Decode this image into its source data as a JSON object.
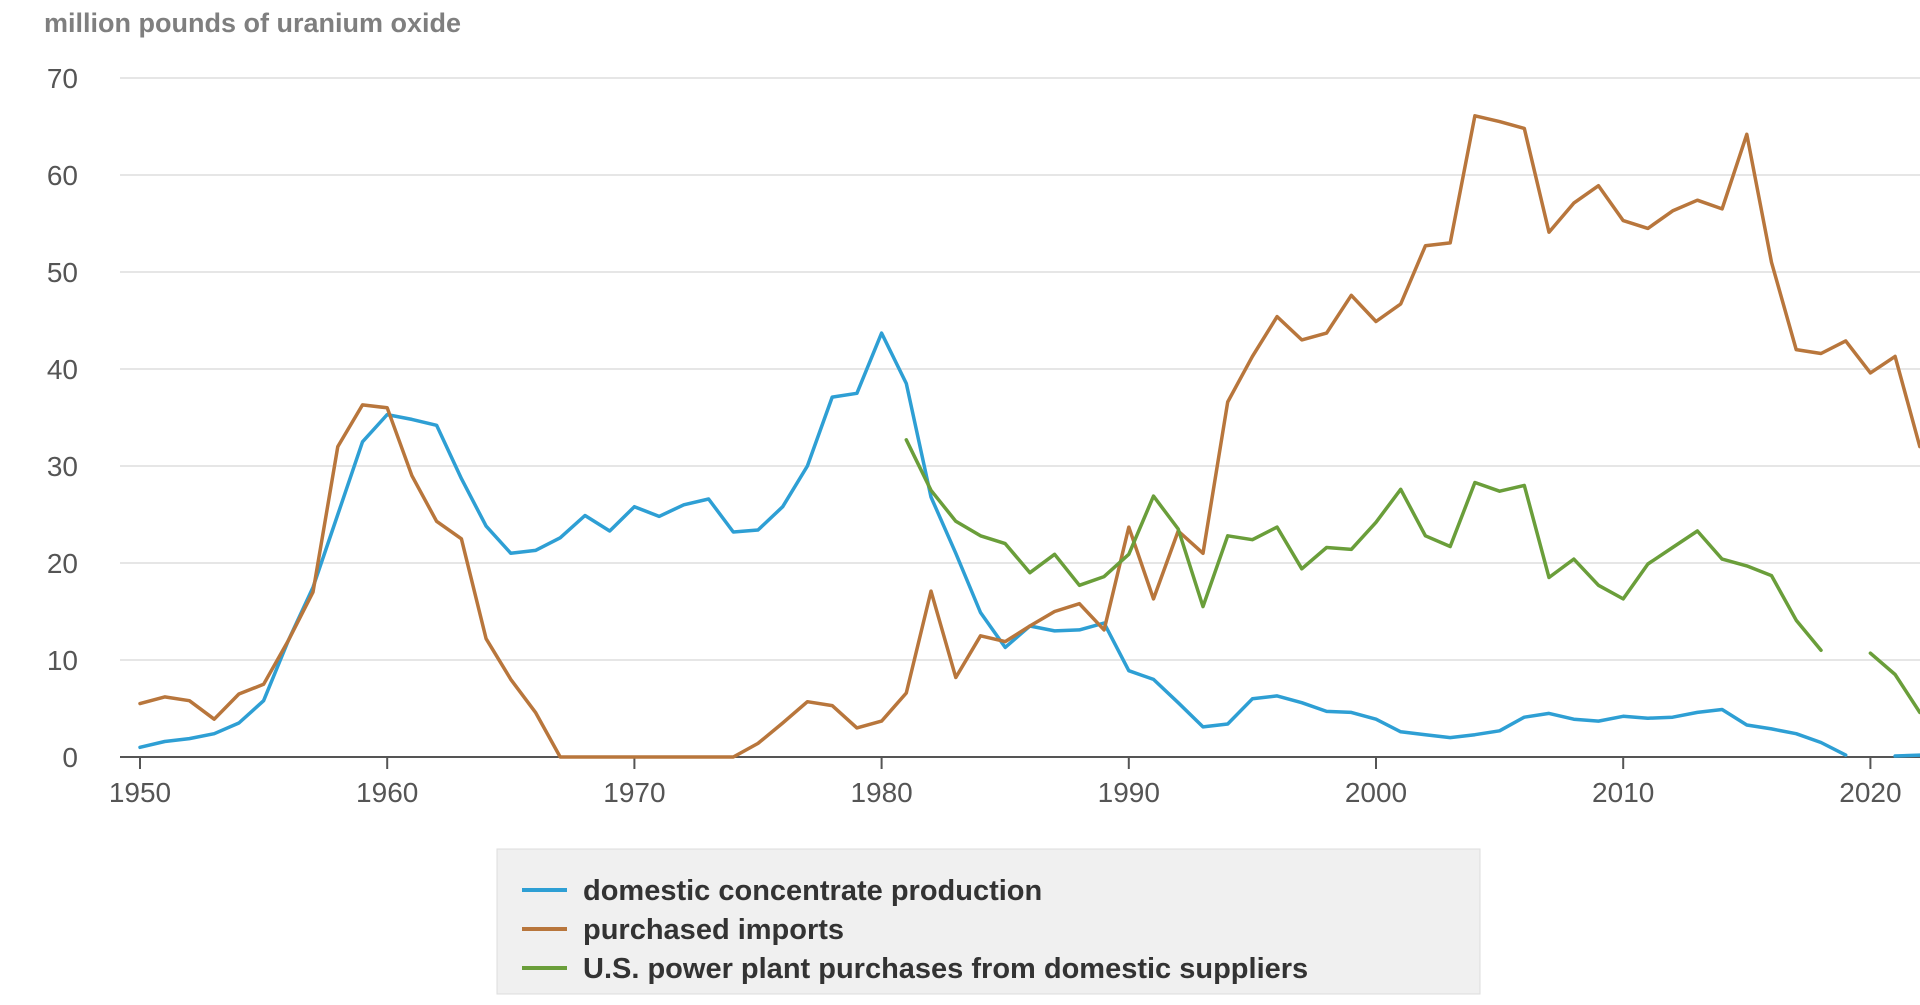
{
  "chart_data": {
    "type": "line",
    "title": "",
    "ylabel": "million pounds of uranium oxide",
    "xlabel": "",
    "xlim": [
      1950,
      2022
    ],
    "ylim": [
      0,
      70
    ],
    "x_ticks": [
      1950,
      1960,
      1970,
      1980,
      1990,
      2000,
      2010,
      2020
    ],
    "y_ticks": [
      0,
      10,
      20,
      30,
      40,
      50,
      60,
      70
    ],
    "grid": "horizontal",
    "legend_position": "bottom-center",
    "colors": {
      "domestic": "#2e9fd4",
      "imports": "#b8763c",
      "power_plant": "#6a9e3a"
    },
    "series": [
      {
        "name": "domestic concentrate production",
        "color": "#2e9fd4",
        "points": [
          [
            1950,
            1.0
          ],
          [
            1951,
            1.6
          ],
          [
            1952,
            1.9
          ],
          [
            1953,
            2.4
          ],
          [
            1954,
            3.5
          ],
          [
            1955,
            5.8
          ],
          [
            1956,
            12.0
          ],
          [
            1957,
            17.5
          ],
          [
            1958,
            25.0
          ],
          [
            1959,
            32.5
          ],
          [
            1960,
            35.3
          ],
          [
            1961,
            34.8
          ],
          [
            1962,
            34.2
          ],
          [
            1963,
            28.7
          ],
          [
            1964,
            23.8
          ],
          [
            1965,
            21.0
          ],
          [
            1966,
            21.3
          ],
          [
            1967,
            22.6
          ],
          [
            1968,
            24.9
          ],
          [
            1969,
            23.3
          ],
          [
            1970,
            25.8
          ],
          [
            1971,
            24.8
          ],
          [
            1972,
            26.0
          ],
          [
            1973,
            26.6
          ],
          [
            1974,
            23.2
          ],
          [
            1975,
            23.4
          ],
          [
            1976,
            25.8
          ],
          [
            1977,
            30.0
          ],
          [
            1978,
            37.1
          ],
          [
            1979,
            37.5
          ],
          [
            1980,
            43.7
          ],
          [
            1981,
            38.5
          ],
          [
            1982,
            26.8
          ],
          [
            1983,
            21.0
          ],
          [
            1984,
            14.9
          ],
          [
            1985,
            11.3
          ],
          [
            1986,
            13.5
          ],
          [
            1987,
            13.0
          ],
          [
            1988,
            13.1
          ],
          [
            1989,
            13.8
          ],
          [
            1990,
            8.9
          ],
          [
            1991,
            8.0
          ],
          [
            1992,
            5.6
          ],
          [
            1993,
            3.1
          ],
          [
            1994,
            3.4
          ],
          [
            1995,
            6.0
          ],
          [
            1996,
            6.3
          ],
          [
            1997,
            5.6
          ],
          [
            1998,
            4.7
          ],
          [
            1999,
            4.6
          ],
          [
            2000,
            3.9
          ],
          [
            2001,
            2.6
          ],
          [
            2002,
            2.3
          ],
          [
            2003,
            2.0
          ],
          [
            2004,
            2.3
          ],
          [
            2005,
            2.7
          ],
          [
            2006,
            4.1
          ],
          [
            2007,
            4.5
          ],
          [
            2008,
            3.9
          ],
          [
            2009,
            3.7
          ],
          [
            2010,
            4.2
          ],
          [
            2011,
            4.0
          ],
          [
            2012,
            4.1
          ],
          [
            2013,
            4.6
          ],
          [
            2014,
            4.9
          ],
          [
            2015,
            3.3
          ],
          [
            2016,
            2.9
          ],
          [
            2017,
            2.4
          ],
          [
            2018,
            1.5
          ],
          [
            2019,
            0.2
          ],
          [
            2020,
            null
          ],
          [
            2021,
            0.1
          ],
          [
            2022,
            0.2
          ]
        ]
      },
      {
        "name": "purchased imports",
        "color": "#b8763c",
        "points": [
          [
            1950,
            5.5
          ],
          [
            1951,
            6.2
          ],
          [
            1952,
            5.8
          ],
          [
            1953,
            3.9
          ],
          [
            1954,
            6.5
          ],
          [
            1955,
            7.5
          ],
          [
            1956,
            12.0
          ],
          [
            1957,
            17.0
          ],
          [
            1958,
            32.0
          ],
          [
            1959,
            36.3
          ],
          [
            1960,
            36.0
          ],
          [
            1961,
            29.0
          ],
          [
            1962,
            24.3
          ],
          [
            1963,
            22.5
          ],
          [
            1964,
            12.2
          ],
          [
            1965,
            8.0
          ],
          [
            1966,
            4.6
          ],
          [
            1967,
            0
          ],
          [
            1968,
            0
          ],
          [
            1969,
            0
          ],
          [
            1970,
            0
          ],
          [
            1971,
            0
          ],
          [
            1972,
            0
          ],
          [
            1973,
            0
          ],
          [
            1974,
            0
          ],
          [
            1975,
            1.4
          ],
          [
            1976,
            3.5
          ],
          [
            1977,
            5.7
          ],
          [
            1978,
            5.3
          ],
          [
            1979,
            3.0
          ],
          [
            1980,
            3.7
          ],
          [
            1981,
            6.6
          ],
          [
            1982,
            17.1
          ],
          [
            1983,
            8.2
          ],
          [
            1984,
            12.5
          ],
          [
            1985,
            11.9
          ],
          [
            1986,
            13.5
          ],
          [
            1987,
            15.0
          ],
          [
            1988,
            15.8
          ],
          [
            1989,
            13.1
          ],
          [
            1990,
            23.7
          ],
          [
            1991,
            16.3
          ],
          [
            1992,
            23.3
          ],
          [
            1993,
            21.0
          ],
          [
            1994,
            36.6
          ],
          [
            1995,
            41.3
          ],
          [
            1996,
            45.4
          ],
          [
            1997,
            43.0
          ],
          [
            1998,
            43.7
          ],
          [
            1999,
            47.6
          ],
          [
            2000,
            44.9
          ],
          [
            2001,
            46.7
          ],
          [
            2002,
            52.7
          ],
          [
            2003,
            53.0
          ],
          [
            2004,
            66.1
          ],
          [
            2005,
            65.5
          ],
          [
            2006,
            64.8
          ],
          [
            2007,
            54.1
          ],
          [
            2008,
            57.1
          ],
          [
            2009,
            58.9
          ],
          [
            2010,
            55.3
          ],
          [
            2011,
            54.5
          ],
          [
            2012,
            56.3
          ],
          [
            2013,
            57.4
          ],
          [
            2014,
            56.5
          ],
          [
            2015,
            64.2
          ],
          [
            2016,
            51.0
          ],
          [
            2017,
            42.0
          ],
          [
            2018,
            41.6
          ],
          [
            2019,
            42.9
          ],
          [
            2020,
            39.6
          ],
          [
            2021,
            41.3
          ],
          [
            2022,
            32.0
          ]
        ]
      },
      {
        "name": "U.S. power plant purchases from domestic suppliers",
        "color": "#6a9e3a",
        "points": [
          [
            1981,
            32.7
          ],
          [
            1982,
            27.5
          ],
          [
            1983,
            24.3
          ],
          [
            1984,
            22.8
          ],
          [
            1985,
            22.0
          ],
          [
            1986,
            19.0
          ],
          [
            1987,
            20.9
          ],
          [
            1988,
            17.7
          ],
          [
            1989,
            18.6
          ],
          [
            1990,
            20.9
          ],
          [
            1991,
            26.9
          ],
          [
            1992,
            23.5
          ],
          [
            1993,
            15.5
          ],
          [
            1994,
            22.8
          ],
          [
            1995,
            22.4
          ],
          [
            1996,
            23.7
          ],
          [
            1997,
            19.4
          ],
          [
            1998,
            21.6
          ],
          [
            1999,
            21.4
          ],
          [
            2000,
            24.2
          ],
          [
            2001,
            27.6
          ],
          [
            2002,
            22.8
          ],
          [
            2003,
            21.7
          ],
          [
            2004,
            28.3
          ],
          [
            2005,
            27.4
          ],
          [
            2006,
            28.0
          ],
          [
            2007,
            18.5
          ],
          [
            2008,
            20.4
          ],
          [
            2009,
            17.7
          ],
          [
            2010,
            16.3
          ],
          [
            2011,
            19.9
          ],
          [
            2012,
            21.6
          ],
          [
            2013,
            23.3
          ],
          [
            2014,
            20.4
          ],
          [
            2015,
            19.7
          ],
          [
            2016,
            18.7
          ],
          [
            2017,
            14.1
          ],
          [
            2018,
            11.0
          ],
          [
            2019,
            null
          ],
          [
            2020,
            10.7
          ],
          [
            2021,
            8.5
          ],
          [
            2022,
            4.6
          ]
        ]
      }
    ]
  }
}
